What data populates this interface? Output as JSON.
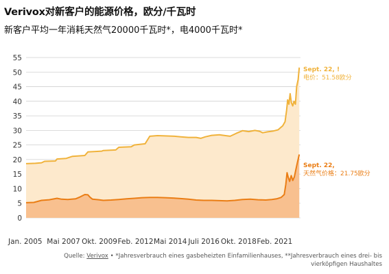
{
  "title": "Verivox对新客户的能源价格，欧分/千瓦时",
  "subtitle": "新客户平均一年消耗天然气20000千瓦时*，电4000千瓦时*",
  "colors": {
    "electricity_line": "#f0b23a",
    "electricity_fill": "#fde9cc",
    "gas_line": "#ea7d14",
    "gas_fill": "#f8c08f",
    "grid": "#cfcfcf"
  },
  "annotations": {
    "electricity_date": "Sept. 22, !",
    "electricity_value": "电价：51.58欧分",
    "gas_date": "Sept. 22,",
    "gas_value": "天然气价格：21.75欧分"
  },
  "footer": {
    "prefix": "Quelle: ",
    "link": "Verivox",
    "text1": " • *Jahresverbrauch eines gasbeheizten Einfamilienhauses, **Jahresverbrauch eines drei- bis",
    "text2": "vierköpfigen Haushaltes"
  },
  "chart_data": {
    "type": "area",
    "ylim": [
      0,
      55
    ],
    "yticks": [
      0,
      5,
      10,
      15,
      20,
      25,
      30,
      35,
      40,
      45,
      50,
      55
    ],
    "xlim": [
      2005.0,
      2022.75
    ],
    "xticks": [
      {
        "x": 2005.0,
        "label": "Jan. 2005"
      },
      {
        "x": 2007.42,
        "label": "Mai 2007"
      },
      {
        "x": 2009.75,
        "label": "Okt. 2009"
      },
      {
        "x": 2012.08,
        "label": "Feb. 2012"
      },
      {
        "x": 2014.33,
        "label": "Mai 2014"
      },
      {
        "x": 2016.5,
        "label": "Juli 2016"
      },
      {
        "x": 2018.75,
        "label": "Okt. 2018"
      },
      {
        "x": 2021.08,
        "label": "Feb. 2021"
      }
    ],
    "series": [
      {
        "name": "电价",
        "points": [
          [
            2005.0,
            18.6
          ],
          [
            2005.6,
            18.7
          ],
          [
            2006.0,
            18.9
          ],
          [
            2006.2,
            19.4
          ],
          [
            2006.9,
            19.5
          ],
          [
            2007.0,
            20.2
          ],
          [
            2007.6,
            20.4
          ],
          [
            2008.0,
            21.1
          ],
          [
            2008.8,
            21.4
          ],
          [
            2009.0,
            22.6
          ],
          [
            2009.9,
            22.9
          ],
          [
            2010.0,
            23.1
          ],
          [
            2010.8,
            23.3
          ],
          [
            2011.0,
            24.2
          ],
          [
            2011.8,
            24.4
          ],
          [
            2012.0,
            25.0
          ],
          [
            2012.7,
            25.4
          ],
          [
            2013.0,
            28.0
          ],
          [
            2013.5,
            28.2
          ],
          [
            2014.0,
            28.1
          ],
          [
            2014.6,
            28.0
          ],
          [
            2015.0,
            27.8
          ],
          [
            2015.5,
            27.6
          ],
          [
            2016.0,
            27.6
          ],
          [
            2016.3,
            27.3
          ],
          [
            2016.6,
            27.8
          ],
          [
            2017.0,
            28.3
          ],
          [
            2017.5,
            28.5
          ],
          [
            2017.9,
            28.2
          ],
          [
            2018.2,
            28.0
          ],
          [
            2018.6,
            29.0
          ],
          [
            2019.0,
            29.9
          ],
          [
            2019.4,
            29.6
          ],
          [
            2019.8,
            30.0
          ],
          [
            2020.1,
            29.7
          ],
          [
            2020.3,
            29.2
          ],
          [
            2020.6,
            29.5
          ],
          [
            2021.0,
            29.8
          ],
          [
            2021.3,
            30.2
          ],
          [
            2021.6,
            31.6
          ],
          [
            2021.75,
            33.0
          ],
          [
            2021.85,
            36.8
          ],
          [
            2021.92,
            40.5
          ],
          [
            2022.0,
            39.0
          ],
          [
            2022.08,
            42.6
          ],
          [
            2022.16,
            39.5
          ],
          [
            2022.25,
            38.4
          ],
          [
            2022.33,
            40.0
          ],
          [
            2022.42,
            39.0
          ],
          [
            2022.5,
            45.0
          ],
          [
            2022.6,
            47.5
          ],
          [
            2022.67,
            51.58
          ]
        ]
      },
      {
        "name": "天然气价格",
        "points": [
          [
            2005.0,
            5.2
          ],
          [
            2005.5,
            5.3
          ],
          [
            2006.0,
            6.0
          ],
          [
            2006.5,
            6.2
          ],
          [
            2007.0,
            6.7
          ],
          [
            2007.3,
            6.4
          ],
          [
            2007.7,
            6.3
          ],
          [
            2008.2,
            6.5
          ],
          [
            2008.5,
            7.2
          ],
          [
            2008.8,
            8.0
          ],
          [
            2009.0,
            7.9
          ],
          [
            2009.15,
            7.0
          ],
          [
            2009.3,
            6.4
          ],
          [
            2009.7,
            6.2
          ],
          [
            2010.0,
            6.0
          ],
          [
            2010.5,
            6.1
          ],
          [
            2011.0,
            6.3
          ],
          [
            2011.5,
            6.5
          ],
          [
            2012.0,
            6.7
          ],
          [
            2012.5,
            6.9
          ],
          [
            2013.0,
            7.0
          ],
          [
            2013.5,
            7.0
          ],
          [
            2014.0,
            6.9
          ],
          [
            2014.5,
            6.8
          ],
          [
            2015.0,
            6.6
          ],
          [
            2015.5,
            6.4
          ],
          [
            2016.0,
            6.1
          ],
          [
            2016.5,
            6.0
          ],
          [
            2017.0,
            6.0
          ],
          [
            2017.5,
            5.9
          ],
          [
            2018.0,
            5.8
          ],
          [
            2018.5,
            6.0
          ],
          [
            2019.0,
            6.3
          ],
          [
            2019.5,
            6.4
          ],
          [
            2020.0,
            6.2
          ],
          [
            2020.5,
            6.1
          ],
          [
            2020.9,
            6.3
          ],
          [
            2021.2,
            6.5
          ],
          [
            2021.5,
            7.0
          ],
          [
            2021.7,
            8.0
          ],
          [
            2021.8,
            11.5
          ],
          [
            2021.88,
            15.5
          ],
          [
            2021.95,
            14.0
          ],
          [
            2022.05,
            12.5
          ],
          [
            2022.15,
            14.5
          ],
          [
            2022.25,
            12.8
          ],
          [
            2022.35,
            14.0
          ],
          [
            2022.45,
            16.5
          ],
          [
            2022.55,
            19.0
          ],
          [
            2022.67,
            21.75
          ]
        ]
      }
    ]
  }
}
